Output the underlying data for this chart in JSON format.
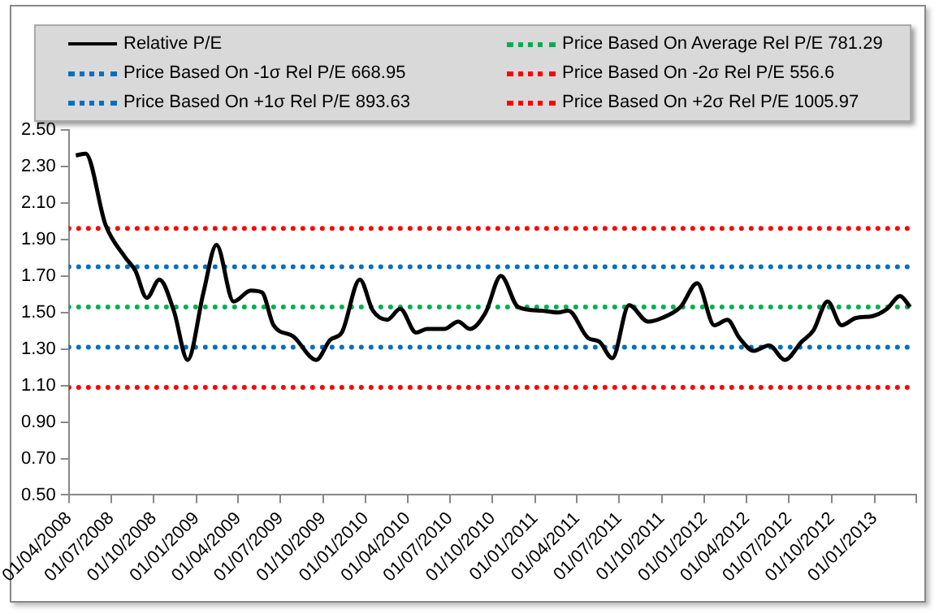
{
  "chart_data": {
    "type": "line",
    "legend": "top",
    "grid": false,
    "marker": "none",
    "xlim": [
      "2008-04-01",
      "2013-04-01"
    ],
    "xticks": [
      {
        "value": "2008-04-01",
        "label": "01/04/2008"
      },
      {
        "value": "2008-07-01",
        "label": "01/07/2008"
      },
      {
        "value": "2008-10-01",
        "label": "01/10/2008"
      },
      {
        "value": "2009-01-01",
        "label": "01/01/2009"
      },
      {
        "value": "2009-04-01",
        "label": "01/04/2009"
      },
      {
        "value": "2009-07-01",
        "label": "01/07/2009"
      },
      {
        "value": "2009-10-01",
        "label": "01/10/2009"
      },
      {
        "value": "2010-01-01",
        "label": "01/01/2010"
      },
      {
        "value": "2010-04-01",
        "label": "01/04/2010"
      },
      {
        "value": "2010-07-01",
        "label": "01/07/2010"
      },
      {
        "value": "2010-10-01",
        "label": "01/10/2010"
      },
      {
        "value": "2011-01-01",
        "label": "01/01/2011"
      },
      {
        "value": "2011-04-01",
        "label": "01/04/2011"
      },
      {
        "value": "2011-07-01",
        "label": "01/07/2011"
      },
      {
        "value": "2011-10-01",
        "label": "01/10/2011"
      },
      {
        "value": "2012-01-01",
        "label": "01/01/2012"
      },
      {
        "value": "2012-04-01",
        "label": "01/04/2012"
      },
      {
        "value": "2012-07-01",
        "label": "01/07/2012"
      },
      {
        "value": "2012-10-01",
        "label": "01/10/2012"
      },
      {
        "value": "2013-01-01",
        "label": "01/01/2013"
      },
      {
        "value": "2013-04-01",
        "label": null
      }
    ],
    "ylim": [
      0.5,
      2.5
    ],
    "yticks": [
      {
        "value": 0.5,
        "label": "0.50"
      },
      {
        "value": 0.7,
        "label": "0.70"
      },
      {
        "value": 0.9,
        "label": "0.90"
      },
      {
        "value": 1.1,
        "label": "1.10"
      },
      {
        "value": 1.3,
        "label": "1.30"
      },
      {
        "value": 1.5,
        "label": "1.50"
      },
      {
        "value": 1.7,
        "label": "1.70"
      },
      {
        "value": 1.9,
        "label": "1.90"
      },
      {
        "value": 2.1,
        "label": "2.10"
      },
      {
        "value": 2.3,
        "label": "2.30"
      },
      {
        "value": 2.5,
        "label": "2.50"
      }
    ],
    "series": [
      {
        "name": "Relative P/E",
        "color": "#000000",
        "line_style": "solid",
        "x": [
          "2008-04-16",
          "2008-05-07",
          "2008-06-19",
          "2008-08-01",
          "2008-08-22",
          "2008-09-16",
          "2008-10-13",
          "2008-11-13",
          "2008-12-13",
          "2009-01-16",
          "2009-02-13",
          "2009-03-22",
          "2009-04-28",
          "2009-05-22",
          "2009-06-16",
          "2009-07-28",
          "2009-09-16",
          "2009-10-16",
          "2009-11-10",
          "2009-12-19",
          "2010-01-16",
          "2010-02-16",
          "2010-03-16",
          "2010-04-19",
          "2010-05-13",
          "2010-06-19",
          "2010-07-19",
          "2010-08-13",
          "2010-09-16",
          "2010-10-19",
          "2010-11-25",
          "2011-01-13",
          "2011-02-19",
          "2011-03-13",
          "2011-04-25",
          "2011-05-19",
          "2011-06-16",
          "2011-07-22",
          "2011-09-01",
          "2011-10-01",
          "2011-11-10",
          "2011-12-16",
          "2012-01-22",
          "2012-02-19",
          "2012-03-16",
          "2012-04-16",
          "2012-05-19",
          "2012-06-22",
          "2012-07-28",
          "2012-08-22",
          "2012-09-22",
          "2012-10-22",
          "2012-11-22",
          "2012-12-28",
          "2013-01-28",
          "2013-02-25",
          "2013-03-19"
        ],
        "values": [
          2.36,
          2.37,
          1.98,
          1.8,
          1.73,
          1.58,
          1.68,
          1.51,
          1.24,
          1.61,
          1.87,
          1.56,
          1.62,
          1.61,
          1.43,
          1.37,
          1.24,
          1.35,
          1.39,
          1.68,
          1.51,
          1.46,
          1.52,
          1.39,
          1.41,
          1.41,
          1.45,
          1.41,
          1.5,
          1.7,
          1.53,
          1.51,
          1.5,
          1.51,
          1.36,
          1.34,
          1.25,
          1.54,
          1.45,
          1.47,
          1.53,
          1.66,
          1.43,
          1.46,
          1.36,
          1.29,
          1.32,
          1.24,
          1.34,
          1.4,
          1.56,
          1.43,
          1.47,
          1.48,
          1.52,
          1.59,
          1.53
        ]
      },
      {
        "name": "Price Based On Average Rel P/E 781.29",
        "color": "#00b050",
        "line_style": "dotted",
        "x": [
          "2008-04-01",
          "2013-03-19"
        ],
        "values": [
          1.53,
          1.53
        ]
      },
      {
        "name": "Price Based On -1σ Rel P/E 668.95",
        "color": "#0070c0",
        "line_style": "dotted",
        "x": [
          "2008-04-01",
          "2013-03-19"
        ],
        "values": [
          1.31,
          1.31
        ]
      },
      {
        "name": "Price Based On -2σ Rel P/E 556.6",
        "color": "#ff0000",
        "line_style": "dotted",
        "x": [
          "2008-04-01",
          "2013-03-19"
        ],
        "values": [
          1.09,
          1.09
        ]
      },
      {
        "name": "Price Based On +1σ Rel P/E 893.63",
        "color": "#0070c0",
        "line_style": "dotted",
        "x": [
          "2008-04-01",
          "2013-03-19"
        ],
        "values": [
          1.75,
          1.75
        ]
      },
      {
        "name": "Price Based On +2σ Rel P/E 1005.97",
        "color": "#ff0000",
        "line_style": "dotted",
        "x": [
          "2008-04-01",
          "2013-03-19"
        ],
        "values": [
          1.96,
          1.96
        ]
      }
    ]
  }
}
